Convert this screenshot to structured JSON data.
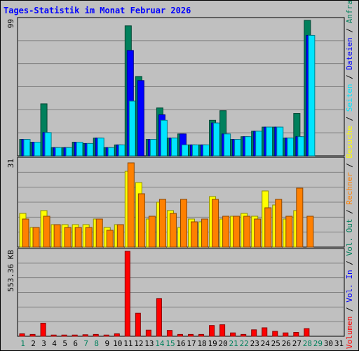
{
  "chart_data": {
    "type": "bar",
    "title": "Tages-Statistik im Monat Februar 2026",
    "categories": [
      "1",
      "2",
      "3",
      "4",
      "5",
      "6",
      "7",
      "8",
      "9",
      "10",
      "11",
      "12",
      "13",
      "14",
      "15",
      "16",
      "17",
      "18",
      "19",
      "20",
      "21",
      "22",
      "23",
      "24",
      "25",
      "26",
      "27",
      "28",
      "29",
      "30",
      "31"
    ],
    "weekend_days": [
      "1",
      "7",
      "8",
      "14",
      "15",
      "21",
      "22",
      "28",
      "29"
    ],
    "panels": [
      {
        "scale_label": "99",
        "ymax": 99,
        "series": [
          {
            "name": "Anfragen",
            "color": "#00805c",
            "values": [
              12,
              10,
              38,
              6,
              6,
              10,
              9,
              13,
              6,
              8,
              95,
              58,
              12,
              35,
              13,
              16,
              8,
              8,
              26,
              33,
              12,
              14,
              18,
              21,
              21,
              13,
              31,
              99,
              0,
              0,
              0
            ]
          },
          {
            "name": "Dateien",
            "color": "#0000ff",
            "values": [
              12,
              10,
              17,
              6,
              6,
              10,
              9,
              13,
              6,
              8,
              77,
              55,
              12,
              30,
              13,
              16,
              8,
              8,
              24,
              16,
              12,
              14,
              18,
              21,
              21,
              13,
              14,
              88,
              0,
              0,
              0
            ]
          },
          {
            "name": "Seiten",
            "color": "#00e5ff",
            "values": [
              12,
              10,
              17,
              6,
              6,
              10,
              9,
              13,
              6,
              8,
              40,
              0,
              12,
              26,
              13,
              8,
              8,
              8,
              24,
              16,
              12,
              14,
              18,
              21,
              21,
              13,
              14,
              88,
              0,
              0,
              0
            ]
          }
        ]
      },
      {
        "scale_label": "31",
        "ymax": 31,
        "series": [
          {
            "name": "Besuche",
            "color": "#ffff00",
            "values": [
              12,
              7,
              13,
              8,
              8,
              8,
              8,
              10,
              7,
              8,
              27,
              23,
              10,
              16,
              13,
              7,
              10,
              9,
              18,
              10,
              11,
              12,
              11,
              20,
              15,
              10,
              13,
              0,
              0,
              0,
              0
            ]
          },
          {
            "name": "Rechner",
            "color": "#ff8000",
            "values": [
              10,
              7,
              11,
              8,
              7,
              7,
              7,
              10,
              6,
              8,
              30,
              19,
              11,
              17,
              12,
              17,
              9,
              10,
              17,
              11,
              11,
              11,
              10,
              14,
              17,
              11,
              21,
              11,
              0,
              0,
              0
            ]
          }
        ]
      },
      {
        "scale_label": "553.36 KB",
        "ymax": 553.36,
        "series": [
          {
            "name": "Volumen",
            "color": "#ff0000",
            "values": [
              16,
              12,
              85,
              8,
              8,
              8,
              10,
              12,
              8,
              16,
              553.36,
              150,
              40,
              245,
              38,
              12,
              12,
              12,
              70,
              75,
              22,
              12,
              42,
              55,
              32,
              22,
              25,
              50,
              0,
              0,
              0
            ]
          }
        ]
      }
    ],
    "legend": [
      "Anfragen",
      "Dateien",
      "Seiten",
      "Besuche",
      "Rechner",
      "Vol. Out",
      "Vol. In",
      "Volumen"
    ],
    "legend_colors": {
      "Anfragen": "#00805c",
      "Dateien": "#0000ff",
      "Seiten": "#00e5ff",
      "Besuche": "#ffff00",
      "Rechner": "#ff8000",
      "Vol. Out": "#00805c",
      "Vol. In": "#0000ff",
      "Volumen": "#ff0000"
    },
    "colors": {
      "background": "#c0c0c0",
      "border": "#000000",
      "title": "#0000ff",
      "grid": "#808080",
      "weekday_label": "#000000",
      "weekend_label": "#00805c"
    }
  }
}
